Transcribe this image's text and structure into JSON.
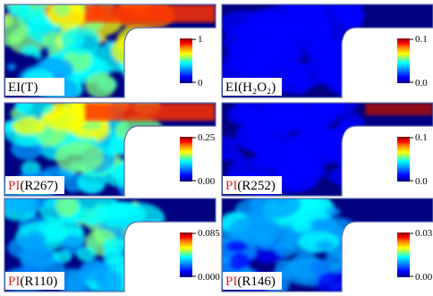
{
  "colormap": [
    "#000080",
    "#0000ff",
    "#00a0ff",
    "#00ffff",
    "#80ff80",
    "#ffff00",
    "#ff8000",
    "#ff0000",
    "#800000"
  ],
  "panel_outline_color": "#5a6eaa",
  "panels": [
    {
      "id": "ei-t",
      "label_prefix": "",
      "label_main": "EI(T)",
      "cb_max": "1",
      "cb_min": "0",
      "level": 0.55
    },
    {
      "id": "ei-h2o2",
      "label_prefix": "",
      "label_main": "EI(H₂O₂)",
      "cb_max": "0.1",
      "cb_min": "0.0",
      "level": 0.12
    },
    {
      "id": "pi-r267",
      "label_prefix": "PI",
      "label_main": "(R267)",
      "cb_max": "0.25",
      "cb_min": "0.00",
      "level": 0.5
    },
    {
      "id": "pi-r252",
      "label_prefix": "PI",
      "label_main": "(R252)",
      "cb_max": "0.1",
      "cb_min": "0.0",
      "level": 0.05
    },
    {
      "id": "pi-r110",
      "label_prefix": "PI",
      "label_main": "(R110)",
      "cb_max": "0.085",
      "cb_min": "0.000",
      "level": 0.4
    },
    {
      "id": "pi-r146",
      "label_prefix": "PI",
      "label_main": "(R146)",
      "cb_max": "0.03",
      "cb_min": "0.00",
      "level": 0.3
    }
  ]
}
